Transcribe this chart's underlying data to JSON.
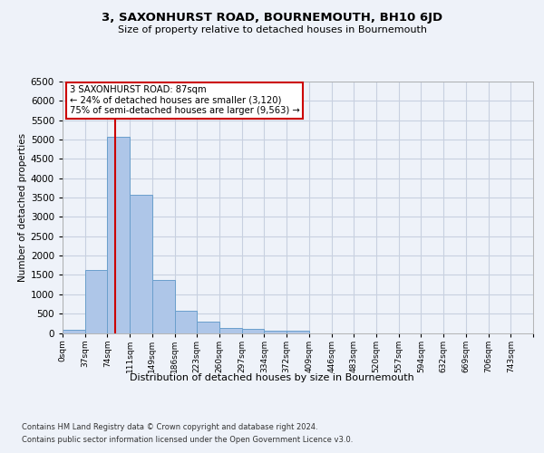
{
  "title": "3, SAXONHURST ROAD, BOURNEMOUTH, BH10 6JD",
  "subtitle": "Size of property relative to detached houses in Bournemouth",
  "xlabel": "Distribution of detached houses by size in Bournemouth",
  "ylabel": "Number of detached properties",
  "footer_line1": "Contains HM Land Registry data © Crown copyright and database right 2024.",
  "footer_line2": "Contains public sector information licensed under the Open Government Licence v3.0.",
  "bar_labels": [
    "0sqm",
    "37sqm",
    "74sqm",
    "111sqm",
    "149sqm",
    "186sqm",
    "223sqm",
    "260sqm",
    "297sqm",
    "334sqm",
    "372sqm",
    "409sqm",
    "446sqm",
    "483sqm",
    "520sqm",
    "557sqm",
    "594sqm",
    "632sqm",
    "669sqm",
    "706sqm",
    "743sqm"
  ],
  "bar_values": [
    75,
    1620,
    5060,
    3570,
    1380,
    580,
    290,
    140,
    110,
    70,
    50,
    0,
    0,
    0,
    0,
    0,
    0,
    0,
    0,
    0,
    0
  ],
  "bar_color": "#aec6e8",
  "bar_edge_color": "#6a9fcc",
  "grid_color": "#c8d0e0",
  "annotation_box_text": "3 SAXONHURST ROAD: 87sqm\n← 24% of detached houses are smaller (3,120)\n75% of semi-detached houses are larger (9,563) →",
  "annotation_box_color": "#ffffff",
  "annotation_box_edge_color": "#cc0000",
  "vline_x": 87,
  "vline_color": "#cc0000",
  "bin_width": 37,
  "ylim": [
    0,
    6500
  ],
  "yticks": [
    0,
    500,
    1000,
    1500,
    2000,
    2500,
    3000,
    3500,
    4000,
    4500,
    5000,
    5500,
    6000,
    6500
  ],
  "background_color": "#eef2f9",
  "plot_background_color": "#eef2f9"
}
